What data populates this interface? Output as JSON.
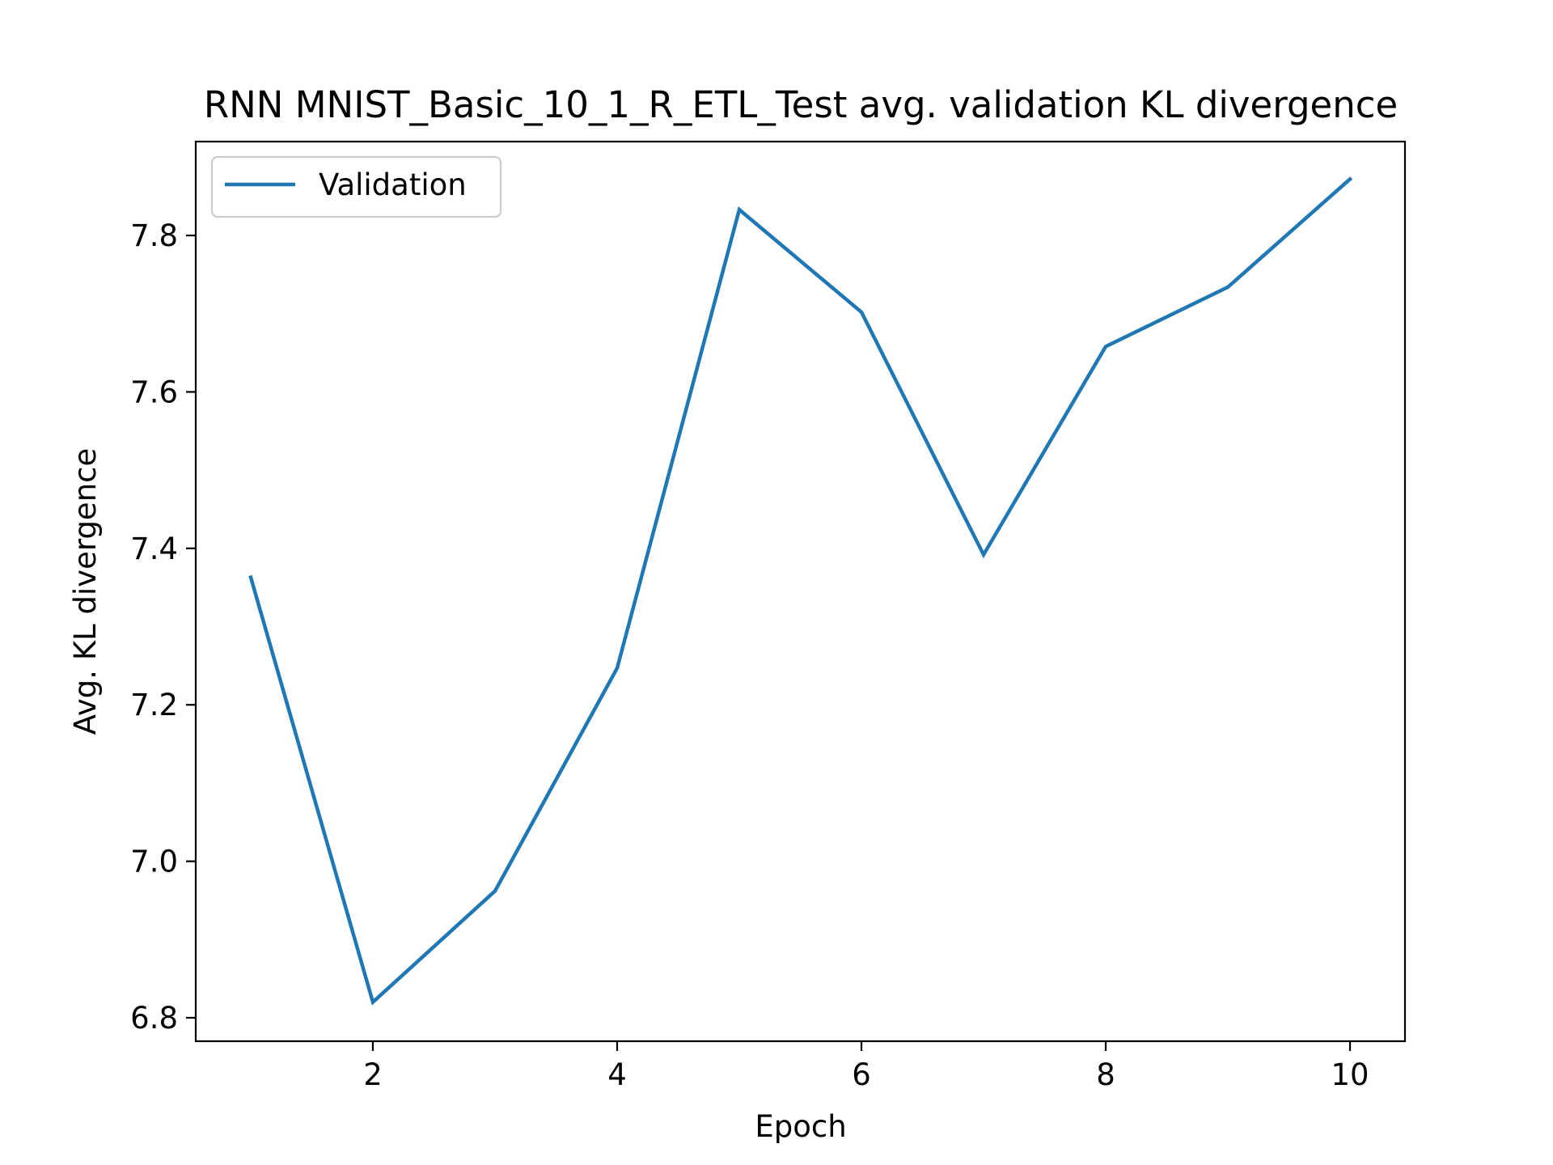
{
  "chart_data": {
    "type": "line",
    "title": "RNN MNIST_Basic_10_1_R_ETL_Test avg. validation KL divergence",
    "xlabel": "Epoch",
    "ylabel": "Avg. KL divergence",
    "x": [
      1,
      2,
      3,
      4,
      5,
      6,
      7,
      8,
      9,
      10
    ],
    "series": [
      {
        "name": "Validation",
        "color": "#1f77b4",
        "values": [
          7.363,
          6.82,
          6.962,
          7.247,
          7.833,
          7.702,
          7.392,
          7.658,
          7.734,
          7.872
        ]
      }
    ],
    "xlim": [
      0.55,
      10.45
    ],
    "ylim": [
      6.77,
      7.92
    ],
    "xticks": [
      2,
      4,
      6,
      8,
      10
    ],
    "xtick_labels": [
      "2",
      "4",
      "6",
      "8",
      "10"
    ],
    "yticks": [
      6.8,
      7.0,
      7.2,
      7.4,
      7.6,
      7.8
    ],
    "ytick_labels": [
      "6.8",
      "7.0",
      "7.2",
      "7.4",
      "7.6",
      "7.8"
    ],
    "legend_position": "upper-left",
    "grid": false
  }
}
